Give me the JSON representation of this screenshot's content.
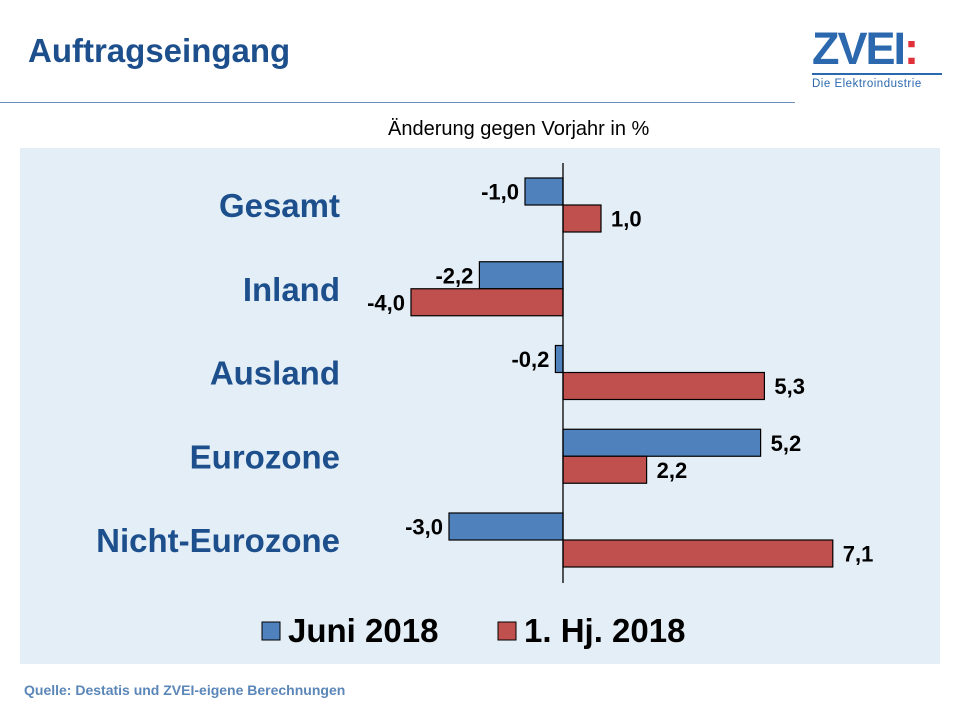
{
  "header": {
    "title": "Auftragseingang",
    "logo_text": "ZVEI:",
    "logo_subtext": "Die Elektroindustrie"
  },
  "chart_data": {
    "type": "bar",
    "orientation": "horizontal",
    "subtitle": "Änderung gegen Vorjahr in %",
    "categories": [
      "Gesamt",
      "Inland",
      "Ausland",
      "Eurozone",
      "Nicht-Eurozone"
    ],
    "series": [
      {
        "name": "Juni 2018",
        "color": "#4f81bd",
        "values": [
          -1.0,
          -2.2,
          -0.2,
          5.2,
          -3.0
        ],
        "labels": [
          "-1,0",
          "-2,2",
          "-0,2",
          "5,2",
          "-3,0"
        ]
      },
      {
        "name": "1. Hj. 2018",
        "color": "#c0504d",
        "values": [
          1.0,
          -4.0,
          5.3,
          2.2,
          7.1
        ],
        "labels": [
          "1,0",
          "-4,0",
          "5,3",
          "2,2",
          "7,1"
        ]
      }
    ],
    "legend": "bottom",
    "grid": false,
    "background": "#e4eef6",
    "category_color": "#1c4f8c"
  },
  "footer": {
    "source": "Quelle: Destatis und ZVEI-eigene Berechnungen"
  }
}
